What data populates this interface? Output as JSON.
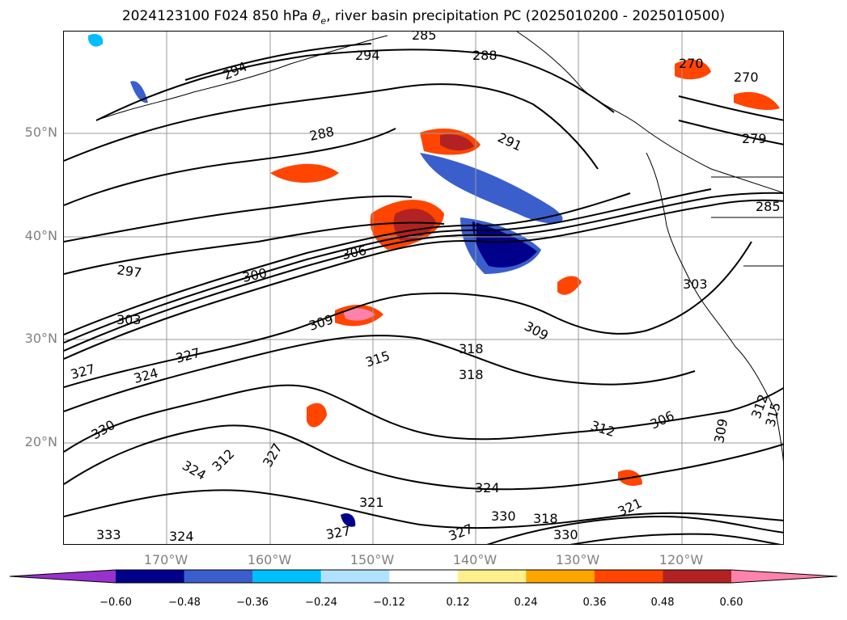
{
  "header": {
    "title_prefix": "2024123100 F024 850 hPa ",
    "theta": "θ",
    "theta_sub": "e",
    "title_suffix": ", river basin precipitation PC (2025010200 - 2025010500)"
  },
  "map": {
    "lat_labels": [
      "50°N",
      "40°N",
      "30°N",
      "20°N"
    ],
    "lon_labels": [
      "170°W",
      "160°W",
      "150°W",
      "140°W",
      "130°W",
      "120°W"
    ],
    "contour_labels": [
      "294",
      "288",
      "285",
      "291",
      "294",
      "288",
      "297",
      "300",
      "306",
      "303",
      "309",
      "318",
      "315",
      "309",
      "318",
      "312",
      "324",
      "327",
      "327",
      "330",
      "324",
      "327",
      "321",
      "324",
      "330",
      "306",
      "312",
      "303",
      "270",
      "270",
      "279",
      "285",
      "309",
      "315",
      "327",
      "330",
      "321",
      "318",
      "327",
      "333",
      "324",
      "312"
    ],
    "colors": {
      "contour": "#000000",
      "grid": "#9a9a9a",
      "coast": "#000000"
    }
  },
  "colorbar": {
    "ticks": [
      "−0.60",
      "−0.48",
      "−0.36",
      "−0.24",
      "−0.12",
      "0.12",
      "0.24",
      "0.36",
      "0.48",
      "0.60"
    ],
    "tick_values": [
      -0.6,
      -0.48,
      -0.36,
      -0.24,
      -0.12,
      0.12,
      0.24,
      0.36,
      0.48,
      0.6
    ],
    "colors": [
      "#9932cc",
      "#00008b",
      "#3a5fcd",
      "#00bfff",
      "#b0e2ff",
      "#ffffff",
      "#fff08b",
      "#ffa500",
      "#ff4500",
      "#b22222",
      "#ff82ab"
    ]
  }
}
